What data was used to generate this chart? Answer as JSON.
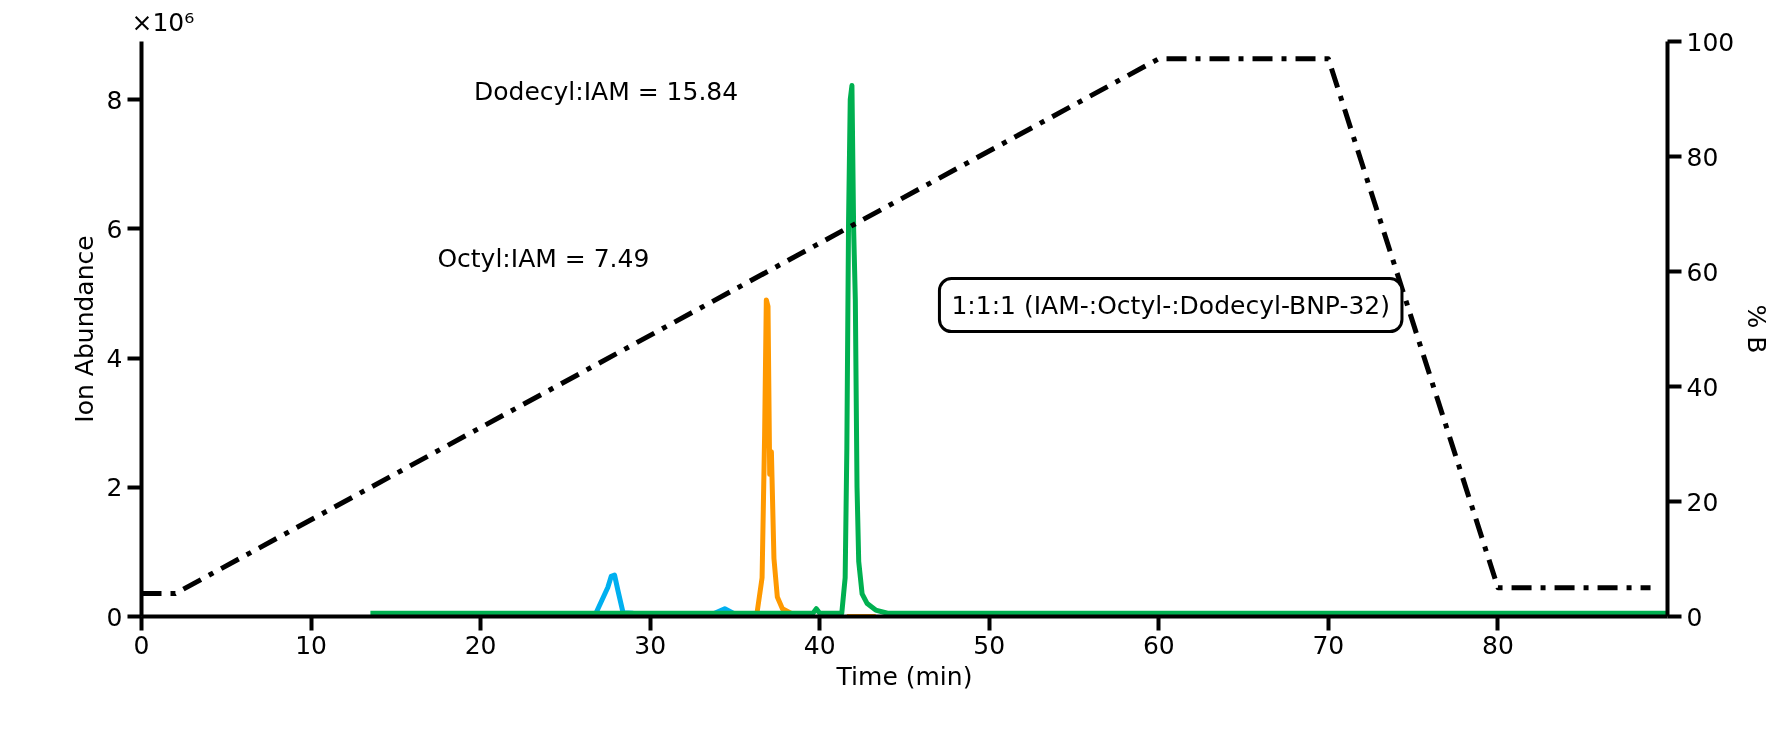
{
  "chart_data": {
    "type": "line",
    "xlabel": "Time (min)",
    "ylabel": "Ion Abundance",
    "y2label": "% B",
    "xlim": [
      0,
      90
    ],
    "xticks": [
      0,
      10,
      20,
      30,
      40,
      50,
      60,
      70,
      80
    ],
    "ylim": [
      0,
      8.9
    ],
    "yticks": [
      0,
      2,
      4,
      6,
      8
    ],
    "y2lim": [
      0,
      100
    ],
    "y2ticks": [
      0,
      20,
      40,
      60,
      80,
      100
    ],
    "grid": false,
    "annotations": [
      "×10⁶",
      "Dodecyl:IAM = 15.84",
      "Octyl:IAM = 7.49",
      "1:1:1 (IAM-:Octyl-:Dodecyl-BNP-32)"
    ],
    "series": [
      {
        "color": "#00b0f0",
        "x": [
          26.8,
          27.5,
          27.7,
          27.9,
          28.1,
          28.4,
          29.0,
          null,
          33.8,
          34.4,
          34.9
        ],
        "values": [
          0.05,
          0.45,
          0.62,
          0.64,
          0.4,
          0.06,
          0.05,
          null,
          0.05,
          0.12,
          0.05
        ]
      },
      {
        "color": "#ff9900",
        "x": [
          36.3,
          36.6,
          36.75,
          36.85,
          36.95,
          37.05,
          37.15,
          37.3,
          37.5,
          37.8,
          38.3,
          null,
          41.6,
          43.3
        ],
        "values": [
          0.05,
          0.6,
          2.8,
          4.9,
          4.8,
          2.2,
          2.55,
          0.9,
          0.3,
          0.12,
          0.05,
          null,
          0.0,
          0.0
        ]
      },
      {
        "color": "#00b050",
        "x": [
          13.5,
          39.6,
          39.8,
          40.0,
          41.3,
          41.5,
          41.6,
          41.7,
          41.8,
          41.9,
          42.0,
          42.1,
          42.2,
          42.3,
          42.5,
          42.8,
          43.3,
          44.0,
          90.0
        ],
        "values": [
          0.05,
          0.05,
          0.12,
          0.05,
          0.05,
          0.6,
          2.6,
          6.1,
          8.0,
          8.22,
          6.0,
          4.9,
          2.0,
          0.85,
          0.35,
          0.2,
          0.1,
          0.05,
          0.05
        ]
      },
      {
        "color": "#000000",
        "axis": "y2",
        "line_style": "dashdot",
        "x": [
          0,
          2,
          60,
          70,
          80,
          89
        ],
        "values": [
          4,
          4,
          97,
          97,
          5,
          5
        ]
      }
    ]
  }
}
